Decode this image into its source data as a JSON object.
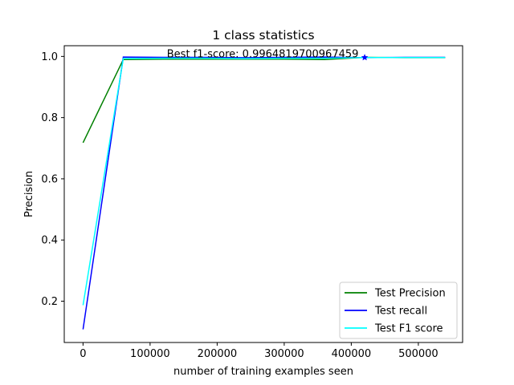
{
  "chart_data": {
    "type": "line",
    "title": "1 class statistics",
    "xlabel": "number of training examples seen",
    "ylabel": "Precision",
    "xlim": [
      -28000,
      566000
    ],
    "ylim": [
      0.065,
      1.035
    ],
    "xticks": [
      0,
      100000,
      200000,
      300000,
      400000,
      500000
    ],
    "xtick_labels": [
      "0",
      "100000",
      "200000",
      "300000",
      "400000",
      "500000"
    ],
    "yticks": [
      0.2,
      0.4,
      0.6,
      0.8,
      1.0
    ],
    "ytick_labels": [
      "0.2",
      "0.4",
      "0.6",
      "0.8",
      "1.0"
    ],
    "grid": false,
    "legend_position": "lower-right",
    "x": [
      0,
      60000,
      120000,
      180000,
      240000,
      300000,
      360000,
      420000,
      480000,
      540000
    ],
    "series": [
      {
        "name": "Test Precision",
        "color": "#008000",
        "values": [
          0.718,
          0.99,
          0.991,
          0.991,
          0.991,
          0.991,
          0.99,
          0.997,
          0.996,
          0.996
        ]
      },
      {
        "name": "Test recall",
        "color": "#0000ff",
        "values": [
          0.108,
          0.998,
          0.997,
          0.997,
          0.996,
          0.997,
          0.998,
          0.996,
          0.997,
          0.997
        ]
      },
      {
        "name": "Test F1 score",
        "color": "#00ffff",
        "values": [
          0.187,
          0.993,
          0.994,
          0.994,
          0.993,
          0.994,
          0.994,
          0.9965,
          0.9965,
          0.9965
        ]
      }
    ],
    "annotation": {
      "text": "Best f1-score: 0.9964819700967459",
      "x": 420000,
      "y": 0.9965,
      "marker": "star",
      "marker_color": "#0000ff"
    }
  }
}
